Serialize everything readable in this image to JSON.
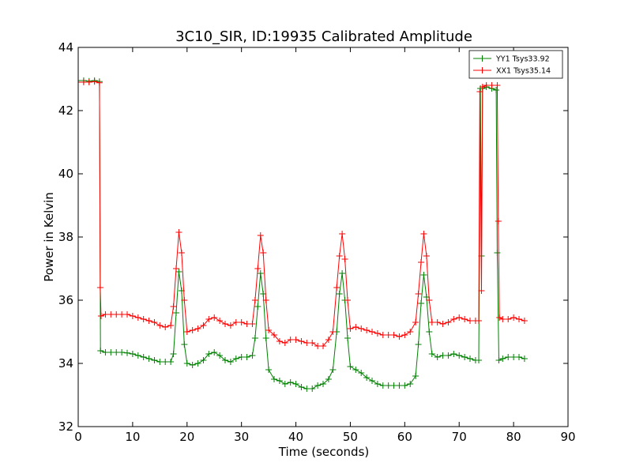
{
  "chart_data": {
    "type": "line",
    "title": "3C10_SIR, ID:19935 Calibrated Amplitude",
    "xlabel": "Time (seconds)",
    "ylabel": "Power in Kelvin",
    "xlim": [
      0,
      90
    ],
    "ylim": [
      32,
      44
    ],
    "xticks": [
      0,
      10,
      20,
      30,
      40,
      50,
      60,
      70,
      80,
      90
    ],
    "yticks": [
      32,
      34,
      36,
      38,
      40,
      42,
      44
    ],
    "grid": false,
    "legend_position": "top-right",
    "marker": "+",
    "series": [
      {
        "name": "YY1 Tsys33.92",
        "color": "#008000",
        "points": [
          [
            0,
            42.95
          ],
          [
            1,
            42.95
          ],
          [
            2,
            42.93
          ],
          [
            3,
            42.95
          ],
          [
            3.9,
            42.92
          ],
          [
            4.1,
            34.4
          ],
          [
            5,
            34.35
          ],
          [
            6,
            34.35
          ],
          [
            7,
            34.35
          ],
          [
            8,
            34.35
          ],
          [
            9,
            34.33
          ],
          [
            10,
            34.3
          ],
          [
            11,
            34.25
          ],
          [
            12,
            34.2
          ],
          [
            13,
            34.15
          ],
          [
            14,
            34.1
          ],
          [
            15,
            34.05
          ],
          [
            16,
            34.05
          ],
          [
            17,
            34.05
          ],
          [
            17.5,
            34.3
          ],
          [
            18,
            35.6
          ],
          [
            18.5,
            36.9
          ],
          [
            19,
            36.3
          ],
          [
            19.5,
            34.6
          ],
          [
            20,
            34.0
          ],
          [
            21,
            33.95
          ],
          [
            22,
            34.0
          ],
          [
            23,
            34.1
          ],
          [
            24,
            34.3
          ],
          [
            25,
            34.35
          ],
          [
            26,
            34.25
          ],
          [
            27,
            34.1
          ],
          [
            28,
            34.05
          ],
          [
            29,
            34.15
          ],
          [
            30,
            34.2
          ],
          [
            31,
            34.2
          ],
          [
            32,
            34.25
          ],
          [
            32.5,
            34.8
          ],
          [
            33,
            35.8
          ],
          [
            33.5,
            36.85
          ],
          [
            34,
            36.2
          ],
          [
            34.5,
            34.8
          ],
          [
            35,
            33.8
          ],
          [
            36,
            33.5
          ],
          [
            37,
            33.45
          ],
          [
            38,
            33.35
          ],
          [
            39,
            33.4
          ],
          [
            40,
            33.35
          ],
          [
            41,
            33.25
          ],
          [
            42,
            33.2
          ],
          [
            43,
            33.2
          ],
          [
            44,
            33.3
          ],
          [
            45,
            33.35
          ],
          [
            46,
            33.5
          ],
          [
            46.8,
            33.8
          ],
          [
            47.5,
            35.0
          ],
          [
            48,
            36.2
          ],
          [
            48.5,
            36.85
          ],
          [
            49,
            36.0
          ],
          [
            49.5,
            34.8
          ],
          [
            50,
            33.9
          ],
          [
            51,
            33.8
          ],
          [
            52,
            33.7
          ],
          [
            53,
            33.55
          ],
          [
            54,
            33.45
          ],
          [
            55,
            33.35
          ],
          [
            56,
            33.3
          ],
          [
            57,
            33.3
          ],
          [
            58,
            33.3
          ],
          [
            59,
            33.3
          ],
          [
            60,
            33.3
          ],
          [
            61,
            33.35
          ],
          [
            62,
            33.6
          ],
          [
            62.5,
            34.6
          ],
          [
            63,
            35.9
          ],
          [
            63.5,
            36.8
          ],
          [
            64,
            36.1
          ],
          [
            64.5,
            35.0
          ],
          [
            65,
            34.3
          ],
          [
            66,
            34.2
          ],
          [
            67,
            34.25
          ],
          [
            68,
            34.25
          ],
          [
            69,
            34.3
          ],
          [
            70,
            34.25
          ],
          [
            71,
            34.2
          ],
          [
            72,
            34.15
          ],
          [
            73,
            34.1
          ],
          [
            73.6,
            34.1
          ],
          [
            73.9,
            42.7
          ],
          [
            74.1,
            37.4
          ],
          [
            74.3,
            42.7
          ],
          [
            75,
            42.75
          ],
          [
            76,
            42.7
          ],
          [
            76.8,
            42.65
          ],
          [
            77,
            37.5
          ],
          [
            77.3,
            34.1
          ],
          [
            78,
            34.15
          ],
          [
            79,
            34.2
          ],
          [
            80,
            34.2
          ],
          [
            81,
            34.2
          ],
          [
            82,
            34.15
          ]
        ]
      },
      {
        "name": "XX1 Tsys35.14",
        "color": "#ff0000",
        "points": [
          [
            0,
            42.9
          ],
          [
            1,
            42.9
          ],
          [
            2,
            42.9
          ],
          [
            3,
            42.92
          ],
          [
            3.9,
            42.88
          ],
          [
            4.05,
            36.4
          ],
          [
            4.2,
            35.5
          ],
          [
            5,
            35.55
          ],
          [
            6,
            35.55
          ],
          [
            7,
            35.55
          ],
          [
            8,
            35.55
          ],
          [
            9,
            35.55
          ],
          [
            10,
            35.5
          ],
          [
            11,
            35.45
          ],
          [
            12,
            35.4
          ],
          [
            13,
            35.35
          ],
          [
            14,
            35.3
          ],
          [
            15,
            35.2
          ],
          [
            16,
            35.15
          ],
          [
            17,
            35.2
          ],
          [
            17.5,
            35.8
          ],
          [
            18,
            37.0
          ],
          [
            18.5,
            38.15
          ],
          [
            19,
            37.5
          ],
          [
            19.5,
            36.0
          ],
          [
            20,
            35.0
          ],
          [
            21,
            35.05
          ],
          [
            22,
            35.1
          ],
          [
            23,
            35.2
          ],
          [
            24,
            35.4
          ],
          [
            25,
            35.45
          ],
          [
            26,
            35.35
          ],
          [
            27,
            35.25
          ],
          [
            28,
            35.2
          ],
          [
            29,
            35.3
          ],
          [
            30,
            35.3
          ],
          [
            31,
            35.25
          ],
          [
            32,
            35.25
          ],
          [
            32.5,
            36.0
          ],
          [
            33,
            37.0
          ],
          [
            33.5,
            38.05
          ],
          [
            34,
            37.5
          ],
          [
            34.5,
            36.0
          ],
          [
            35,
            35.05
          ],
          [
            36,
            34.9
          ],
          [
            37,
            34.7
          ],
          [
            38,
            34.65
          ],
          [
            39,
            34.75
          ],
          [
            40,
            34.75
          ],
          [
            41,
            34.7
          ],
          [
            42,
            34.65
          ],
          [
            43,
            34.65
          ],
          [
            44,
            34.55
          ],
          [
            45,
            34.55
          ],
          [
            46,
            34.75
          ],
          [
            46.8,
            35.0
          ],
          [
            47.5,
            36.4
          ],
          [
            48,
            37.4
          ],
          [
            48.5,
            38.1
          ],
          [
            49,
            37.3
          ],
          [
            49.5,
            36.0
          ],
          [
            50,
            35.1
          ],
          [
            51,
            35.15
          ],
          [
            52,
            35.1
          ],
          [
            53,
            35.05
          ],
          [
            54,
            35.0
          ],
          [
            55,
            34.95
          ],
          [
            56,
            34.9
          ],
          [
            57,
            34.9
          ],
          [
            58,
            34.9
          ],
          [
            59,
            34.85
          ],
          [
            60,
            34.9
          ],
          [
            61,
            35.0
          ],
          [
            62,
            35.3
          ],
          [
            62.5,
            36.2
          ],
          [
            63,
            37.2
          ],
          [
            63.5,
            38.1
          ],
          [
            64,
            37.4
          ],
          [
            64.5,
            36.0
          ],
          [
            65,
            35.3
          ],
          [
            66,
            35.3
          ],
          [
            67,
            35.25
          ],
          [
            68,
            35.3
          ],
          [
            69,
            35.4
          ],
          [
            70,
            35.45
          ],
          [
            71,
            35.4
          ],
          [
            72,
            35.35
          ],
          [
            73,
            35.35
          ],
          [
            73.6,
            35.35
          ],
          [
            73.8,
            42.6
          ],
          [
            74.1,
            36.3
          ],
          [
            74.3,
            42.75
          ],
          [
            75,
            42.8
          ],
          [
            76,
            42.8
          ],
          [
            77,
            42.8
          ],
          [
            77.2,
            38.5
          ],
          [
            77.4,
            35.45
          ],
          [
            78,
            35.4
          ],
          [
            79,
            35.4
          ],
          [
            80,
            35.45
          ],
          [
            81,
            35.4
          ],
          [
            82,
            35.35
          ]
        ]
      }
    ]
  }
}
